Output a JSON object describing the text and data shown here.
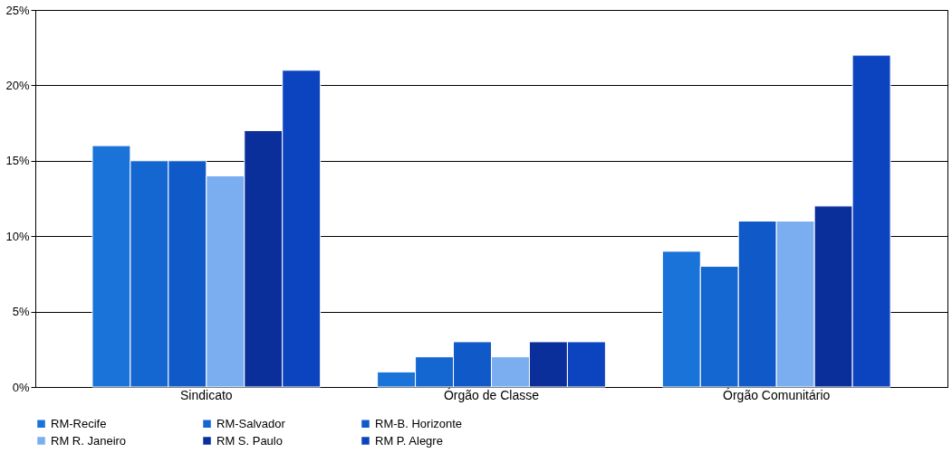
{
  "chart_data": {
    "type": "bar",
    "categories": [
      "Sindicato",
      "Órgão de Classe",
      "Órgão Comunitário"
    ],
    "series": [
      {
        "name": "RM-Recife",
        "color": "#1a73d9",
        "values": [
          16,
          1,
          9
        ]
      },
      {
        "name": "RM-Salvador",
        "color": "#1466d0",
        "values": [
          15,
          2,
          8
        ]
      },
      {
        "name": "RM-B. Horizonte",
        "color": "#1059c8",
        "values": [
          15,
          3,
          11
        ]
      },
      {
        "name": "RM R. Janeiro",
        "color": "#7aaef0",
        "values": [
          14,
          2,
          11
        ]
      },
      {
        "name": "RM S. Paulo",
        "color": "#0a2f9a",
        "values": [
          17,
          3,
          12
        ]
      },
      {
        "name": "RM P. Alegre",
        "color": "#0c44c0",
        "values": [
          21,
          3,
          22
        ]
      }
    ],
    "ylim": [
      0,
      25
    ],
    "yticks": [
      {
        "value": 0,
        "label": "0%"
      },
      {
        "value": 5,
        "label": "5%"
      },
      {
        "value": 10,
        "label": "10%"
      },
      {
        "value": 15,
        "label": "15%"
      },
      {
        "value": 20,
        "label": "20%"
      },
      {
        "value": 25,
        "label": "25%"
      }
    ],
    "grid": "y",
    "legend": "bottom"
  }
}
